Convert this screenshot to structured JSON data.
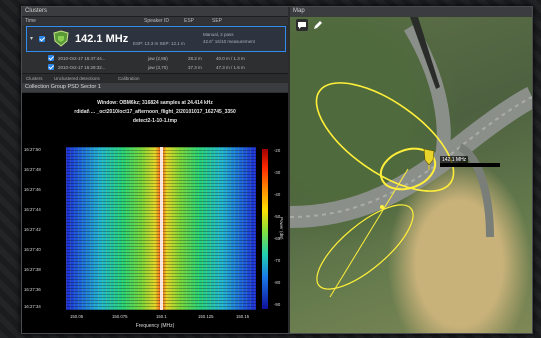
{
  "clusters_panel": {
    "title": "Clusters",
    "columns": {
      "time": "Time",
      "speaker_id": "Speaker ID",
      "esp": "ESP",
      "sep": "SEP"
    },
    "selected": {
      "frequency": "142.1 MHz",
      "line1": "ESP: 13.3 m   SEP: 12.1 m",
      "status": "Manual, 2 pass",
      "status2": "42.6° 16/10 measurement"
    },
    "rows": [
      {
        "time": "2010-Oct-17 16:47:44...",
        "speaker": "jaw (2,86)",
        "esp": "28.2 m",
        "sep": "40.0 m / 1.3 m"
      },
      {
        "time": "2010-Oct-17 16:29:32...",
        "speaker": "jaw (3,70)",
        "esp": "37.3 m",
        "sep": "47.3 m / 1.6 m"
      }
    ]
  },
  "tabs": [
    "Clusters",
    "Unclustered detections",
    "Calibration"
  ],
  "psd_panel": {
    "title": "Collection Group PSD Sector 1",
    "header_line1": "Window: OBM6kz; 316824 samples at 24.414 kHz",
    "header_line2": "rdidat\\ ... _oct2010/oct17_afternoon_flight_2/20101017_162745_3350",
    "header_line3": "detect2-1-10-1.tmp",
    "y_ticks": [
      "16:27:50",
      "16:27:48",
      "16:27:46",
      "16:27:44",
      "16:27:42",
      "16:27:40",
      "16:27:38",
      "16:27:36",
      "16:27:34"
    ],
    "x_ticks": [
      "150.05",
      "150.075",
      "150.1",
      "150.125",
      "150.15"
    ],
    "x_label": "Frequency (MHz)",
    "colorbar_ticks": [
      "-20",
      "-30",
      "-40",
      "-50",
      "-60",
      "-70",
      "-80",
      "-90"
    ],
    "colorbar_label": "Power (dB)"
  },
  "map_panel": {
    "title": "Map",
    "marker_label": "142.1 MHz",
    "icons": {
      "comment": "comment-icon",
      "pen": "pen-icon"
    }
  }
}
